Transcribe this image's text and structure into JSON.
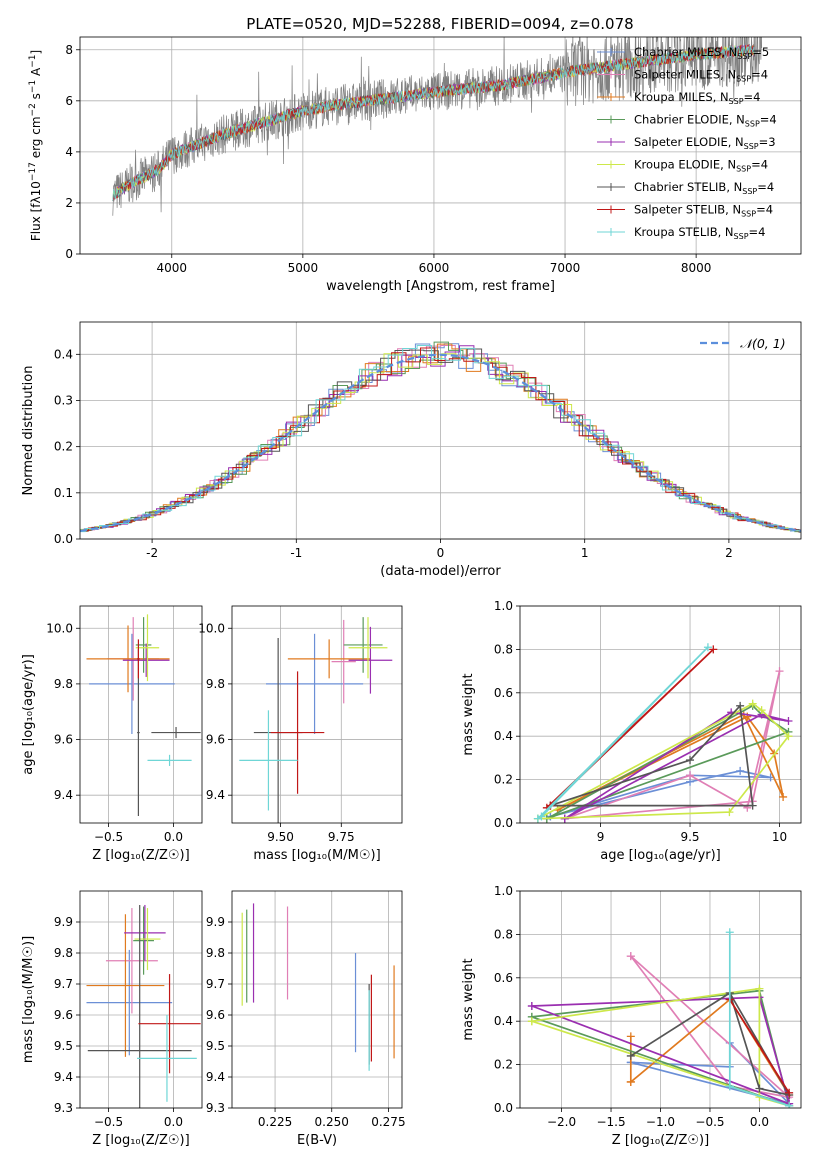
{
  "title": "PLATE=0520, MJD=52288, FIBERID=0094, z=0.078",
  "colors": {
    "Chabrier MILES": "#6b8fd6",
    "Salpeter MILES": "#e07fb5",
    "Kroupa MILES": "#e07a1f",
    "Chabrier ELODIE": "#5a9a5a",
    "Salpeter ELODIE": "#9a2fb0",
    "Kroupa ELODIE": "#cde84a",
    "Chabrier STELIB": "#555555",
    "Salpeter STELIB": "#c01818",
    "Kroupa STELIB": "#6fd6d6"
  },
  "legend_spectrum": [
    {
      "name": "Chabrier MILES",
      "n": "5"
    },
    {
      "name": "Salpeter MILES",
      "n": "4"
    },
    {
      "name": "Kroupa MILES",
      "n": "4"
    },
    {
      "name": "Chabrier ELODIE",
      "n": "4"
    },
    {
      "name": "Salpeter ELODIE",
      "n": "3"
    },
    {
      "name": "Kroupa ELODIE",
      "n": "4"
    },
    {
      "name": "Chabrier STELIB",
      "n": "4"
    },
    {
      "name": "Salpeter STELIB",
      "n": "4"
    },
    {
      "name": "Kroupa STELIB",
      "n": "4"
    }
  ],
  "chart_data": [
    {
      "type": "line",
      "name": "spectrum",
      "xlabel": "wavelength [Angstrom, rest frame]",
      "ylabel_parts": [
        "Flux [f",
        "λ",
        "10",
        "−17",
        " erg cm",
        "−2",
        " s",
        "−1",
        " A",
        "−1",
        "]"
      ],
      "xlim": [
        3300,
        8800
      ],
      "ylim": [
        0,
        8.5
      ],
      "xticks": [
        4000,
        5000,
        6000,
        7000,
        8000
      ],
      "yticks": [
        0,
        2,
        4,
        6,
        8
      ],
      "continuum": [
        [
          3550,
          2.3
        ],
        [
          3700,
          2.8
        ],
        [
          3900,
          3.3
        ],
        [
          4000,
          3.9
        ],
        [
          4200,
          4.3
        ],
        [
          4400,
          4.7
        ],
        [
          4600,
          5.0
        ],
        [
          4800,
          5.3
        ],
        [
          5000,
          5.6
        ],
        [
          5200,
          5.8
        ],
        [
          5500,
          6.0
        ],
        [
          5800,
          6.2
        ],
        [
          6100,
          6.4
        ],
        [
          6500,
          6.6
        ],
        [
          6800,
          6.9
        ],
        [
          7100,
          7.2
        ],
        [
          7400,
          7.4
        ],
        [
          8000,
          7.8
        ],
        [
          8400,
          8.0
        ],
        [
          8500,
          7.9
        ]
      ]
    },
    {
      "type": "histogram",
      "name": "residuals",
      "xlabel": "(data-model)/error",
      "ylabel": "Normed distribution",
      "xlim": [
        -2.5,
        2.5
      ],
      "ylim": [
        0,
        0.47
      ],
      "xticks": [
        -2,
        -1,
        0,
        1,
        2
      ],
      "yticks": [
        0.0,
        0.1,
        0.2,
        0.3,
        0.4
      ],
      "legend": "𝒩(0, 1)"
    },
    {
      "type": "scatter",
      "name": "age-vs-Z",
      "xlabel": "Z [log₁₀(Z/Z☉)]",
      "ylabel": "age  [log₁₀(age/yr)]",
      "xlim": [
        -0.72,
        0.22
      ],
      "ylim": [
        9.3,
        10.08
      ],
      "xticks": [
        -0.5,
        0.0
      ],
      "xtick_labels": [
        "−0.5",
        "0.0"
      ],
      "yticks": [
        9.4,
        9.6,
        9.8,
        10.0
      ],
      "points": [
        {
          "c": "Chabrier MILES",
          "x": -0.32,
          "y": 9.8,
          "xe": 0.33,
          "ye": 0.18
        },
        {
          "c": "Salpeter MILES",
          "x": -0.31,
          "y": 9.89,
          "xe": 0.2,
          "ye": 0.15
        },
        {
          "c": "Kroupa MILES",
          "x": -0.35,
          "y": 9.89,
          "xe": 0.32,
          "ye": 0.12
        },
        {
          "c": "Chabrier ELODIE",
          "x": -0.23,
          "y": 9.94,
          "xe": 0.06,
          "ye": 0.1
        },
        {
          "c": "Salpeter ELODIE",
          "x": -0.21,
          "y": 9.885,
          "xe": 0.18,
          "ye": 0.06
        },
        {
          "c": "Kroupa ELODIE",
          "x": -0.2,
          "y": 9.93,
          "xe": 0.09,
          "ye": 0.12
        },
        {
          "c": "Chabrier STELIB",
          "x": -0.27,
          "y": 9.625,
          "xe": 0.01,
          "ye": 0.3
        },
        {
          "c": "Chabrier STELIB",
          "x": 0.02,
          "y": 9.625,
          "xe": 0.19,
          "ye": 0.02
        },
        {
          "c": "Salpeter STELIB",
          "x": -0.27,
          "y": 9.89,
          "xe": 0.01,
          "ye": 0.07
        },
        {
          "c": "Kroupa STELIB",
          "x": -0.03,
          "y": 9.525,
          "xe": 0.17,
          "ye": 0.02
        }
      ]
    },
    {
      "type": "scatter",
      "name": "age-vs-mass",
      "xlabel": "mass [log₁₀(M/M☉)]",
      "xlim": [
        9.3,
        10.0
      ],
      "ylim": [
        9.3,
        10.08
      ],
      "xticks": [
        9.5,
        9.75
      ],
      "xtick_labels": [
        "9.50",
        "9.75"
      ],
      "yticks": [
        9.4,
        9.6,
        9.8,
        10.0
      ],
      "points": [
        {
          "c": "Chabrier MILES",
          "x": 9.64,
          "y": 9.8,
          "xe": 0.2,
          "ye": 0.18
        },
        {
          "c": "Salpeter MILES",
          "x": 9.76,
          "y": 9.88,
          "xe": 0.05,
          "ye": 0.15
        },
        {
          "c": "Kroupa MILES",
          "x": 9.7,
          "y": 9.89,
          "xe": 0.17,
          "ye": 0.07
        },
        {
          "c": "Chabrier ELODIE",
          "x": 9.84,
          "y": 9.94,
          "xe": 0.08,
          "ye": 0.1
        },
        {
          "c": "Salpeter ELODIE",
          "x": 9.87,
          "y": 9.885,
          "xe": 0.09,
          "ye": 0.12
        },
        {
          "c": "Kroupa ELODIE",
          "x": 9.86,
          "y": 9.93,
          "xe": 0.08,
          "ye": 0.11
        },
        {
          "c": "Chabrier STELIB",
          "x": 9.49,
          "y": 9.625,
          "xe": 0.1,
          "ye": 0.34
        },
        {
          "c": "Salpeter STELIB",
          "x": 9.57,
          "y": 9.625,
          "xe": 0.11,
          "ye": 0.22
        },
        {
          "c": "Kroupa STELIB",
          "x": 9.45,
          "y": 9.525,
          "xe": 0.12,
          "ye": 0.18
        }
      ]
    },
    {
      "type": "line",
      "name": "mass-weight-vs-age",
      "xlabel": "age  [log₁₀(age/yr)]",
      "ylabel": "mass weight",
      "xlim": [
        8.55,
        10.12
      ],
      "ylim": [
        0.0,
        1.0
      ],
      "xticks": [
        9.0,
        9.5,
        10.0
      ],
      "yticks": [
        0.0,
        0.2,
        0.4,
        0.6,
        0.8,
        1.0
      ],
      "series": [
        {
          "c": "Chabrier MILES",
          "points": [
            [
              8.72,
              0.03
            ],
            [
              9.5,
              0.19
            ],
            [
              9.78,
              0.24
            ],
            [
              9.95,
              0.21
            ],
            [
              9.5,
              0.22
            ],
            [
              8.72,
              0.03
            ]
          ]
        },
        {
          "c": "Salpeter MILES",
          "points": [
            [
              8.8,
              0.02
            ],
            [
              9.5,
              0.22
            ],
            [
              9.82,
              0.07
            ],
            [
              10.0,
              0.7
            ],
            [
              9.85,
              0.1
            ],
            [
              8.8,
              0.02
            ]
          ]
        },
        {
          "c": "Kroupa MILES",
          "points": [
            [
              8.76,
              0.06
            ],
            [
              9.82,
              0.49
            ],
            [
              9.97,
              0.32
            ],
            [
              10.02,
              0.12
            ],
            [
              9.8,
              0.5
            ],
            [
              8.76,
              0.06
            ]
          ]
        },
        {
          "c": "Chabrier ELODIE",
          "points": [
            [
              8.7,
              0.02
            ],
            [
              9.85,
              0.54
            ],
            [
              9.9,
              0.5
            ],
            [
              10.05,
              0.42
            ],
            [
              8.7,
              0.02
            ]
          ]
        },
        {
          "c": "Salpeter ELODIE",
          "points": [
            [
              8.8,
              0.02
            ],
            [
              9.73,
              0.51
            ],
            [
              10.05,
              0.47
            ],
            [
              9.9,
              0.5
            ],
            [
              8.8,
              0.02
            ]
          ]
        },
        {
          "c": "Kroupa ELODIE",
          "points": [
            [
              8.65,
              0.02
            ],
            [
              9.85,
              0.55
            ],
            [
              9.9,
              0.52
            ],
            [
              10.05,
              0.4
            ],
            [
              9.72,
              0.05
            ],
            [
              8.65,
              0.02
            ]
          ]
        },
        {
          "c": "Chabrier STELIB",
          "points": [
            [
              8.72,
              0.08
            ],
            [
              9.5,
              0.29
            ],
            [
              9.78,
              0.54
            ],
            [
              9.85,
              0.08
            ],
            [
              8.72,
              0.08
            ]
          ]
        },
        {
          "c": "Salpeter STELIB",
          "points": [
            [
              8.7,
              0.07
            ],
            [
              9.63,
              0.8
            ],
            [
              8.72,
              0.08
            ]
          ]
        },
        {
          "c": "Kroupa STELIB",
          "points": [
            [
              8.65,
              0.02
            ],
            [
              9.6,
              0.81
            ],
            [
              8.67,
              0.03
            ]
          ]
        }
      ]
    },
    {
      "type": "scatter",
      "name": "mass-vs-Z",
      "xlabel": "Z [log₁₀(Z/Z☉)]",
      "ylabel": "mass [log₁₀(M/M☉)]",
      "xlim": [
        -0.72,
        0.22
      ],
      "ylim": [
        9.3,
        10.0
      ],
      "xticks": [
        -0.5,
        0.0
      ],
      "xtick_labels": [
        "−0.5",
        "0.0"
      ],
      "yticks": [
        9.3,
        9.4,
        9.5,
        9.6,
        9.7,
        9.8,
        9.9
      ],
      "points": [
        {
          "c": "Chabrier MILES",
          "x": -0.34,
          "y": 9.64,
          "xe": 0.33,
          "ye": 0.17
        },
        {
          "c": "Salpeter MILES",
          "x": -0.32,
          "y": 9.775,
          "xe": 0.2,
          "ye": 0.17
        },
        {
          "c": "Kroupa MILES",
          "x": -0.37,
          "y": 9.695,
          "xe": 0.3,
          "ye": 0.23
        },
        {
          "c": "Chabrier ELODIE",
          "x": -0.23,
          "y": 9.84,
          "xe": 0.08,
          "ye": 0.11
        },
        {
          "c": "Salpeter ELODIE",
          "x": -0.22,
          "y": 9.865,
          "xe": 0.16,
          "ye": 0.09
        },
        {
          "c": "Kroupa ELODIE",
          "x": -0.2,
          "y": 9.845,
          "xe": 0.1,
          "ye": 0.1
        },
        {
          "c": "Chabrier STELIB",
          "x": -0.26,
          "y": 9.485,
          "xe": 0.4,
          "ye": 0.47
        },
        {
          "c": "Salpeter STELIB",
          "x": -0.03,
          "y": 9.572,
          "xe": 0.24,
          "ye": 0.16
        },
        {
          "c": "Kroupa STELIB",
          "x": -0.05,
          "y": 9.46,
          "xe": 0.23,
          "ye": 0.14
        }
      ]
    },
    {
      "type": "scatter",
      "name": "mass-vs-EBV",
      "xlabel": "E(B-V)",
      "xlim": [
        0.206,
        0.281
      ],
      "ylim": [
        9.3,
        10.0
      ],
      "xticks": [
        0.225,
        0.25,
        0.275
      ],
      "xtick_labels": [
        "0.225",
        "0.250",
        "0.275"
      ],
      "yticks": [
        9.3,
        9.4,
        9.5,
        9.6,
        9.7,
        9.8,
        9.9
      ],
      "points": [
        {
          "c": "Chabrier MILES",
          "x": 0.2605,
          "y": 9.64,
          "ye": 0.16
        },
        {
          "c": "Salpeter MILES",
          "x": 0.2305,
          "y": 9.8,
          "ye": 0.15
        },
        {
          "c": "Kroupa MILES",
          "x": 0.2775,
          "y": 9.61,
          "ye": 0.15
        },
        {
          "c": "Chabrier ELODIE",
          "x": 0.2125,
          "y": 9.79,
          "ye": 0.15
        },
        {
          "c": "Salpeter ELODIE",
          "x": 0.2155,
          "y": 9.8,
          "ye": 0.16
        },
        {
          "c": "Kroupa ELODIE",
          "x": 0.2105,
          "y": 9.78,
          "ye": 0.15
        },
        {
          "c": "Chabrier STELIB",
          "x": 0.2665,
          "y": 9.57,
          "ye": 0.13
        },
        {
          "c": "Salpeter STELIB",
          "x": 0.2675,
          "y": 9.59,
          "ye": 0.14
        },
        {
          "c": "Kroupa STELIB",
          "x": 0.2665,
          "y": 9.55,
          "ye": 0.13
        }
      ]
    },
    {
      "type": "line",
      "name": "mass-weight-vs-Z",
      "xlabel": "Z [log₁₀(Z/Z☉)]",
      "ylabel": "mass weight",
      "xlim": [
        -2.42,
        0.42
      ],
      "ylim": [
        0.0,
        1.0
      ],
      "xticks": [
        -2.0,
        -1.5,
        -1.0,
        -0.5,
        0.0
      ],
      "xtick_labels": [
        "−2.0",
        "−1.5",
        "−1.0",
        "−0.5",
        "0.0"
      ],
      "yticks": [
        0.0,
        0.2,
        0.4,
        0.6,
        0.8,
        1.0
      ],
      "series": [
        {
          "c": "Chabrier MILES",
          "points": [
            [
              -1.3,
              0.21
            ],
            [
              -0.3,
              0.19
            ],
            [
              -0.3,
              0.3
            ],
            [
              0.3,
              0.02
            ],
            [
              -1.3,
              0.21
            ]
          ]
        },
        {
          "c": "Salpeter MILES",
          "points": [
            [
              -1.3,
              0.7
            ],
            [
              0.3,
              0.05
            ],
            [
              -0.3,
              0.1
            ],
            [
              -1.3,
              0.7
            ]
          ]
        },
        {
          "c": "Kroupa MILES",
          "points": [
            [
              -1.3,
              0.12
            ],
            [
              -1.3,
              0.33
            ],
            [
              -1.3,
              0.12
            ],
            [
              -0.3,
              0.5
            ],
            [
              0.3,
              0.06
            ],
            [
              -0.3,
              0.5
            ]
          ]
        },
        {
          "c": "Chabrier ELODIE",
          "points": [
            [
              -2.3,
              0.42
            ],
            [
              0.0,
              0.54
            ],
            [
              0.3,
              0.01
            ],
            [
              -2.3,
              0.42
            ]
          ]
        },
        {
          "c": "Salpeter ELODIE",
          "points": [
            [
              -2.3,
              0.47
            ],
            [
              0.0,
              0.51
            ],
            [
              0.3,
              0.02
            ],
            [
              -2.3,
              0.47
            ]
          ]
        },
        {
          "c": "Kroupa ELODIE",
          "points": [
            [
              -2.3,
              0.4
            ],
            [
              0.0,
              0.55
            ],
            [
              0.0,
              0.05
            ],
            [
              0.3,
              0.01
            ],
            [
              -2.3,
              0.4
            ]
          ]
        },
        {
          "c": "Chabrier STELIB",
          "points": [
            [
              -1.3,
              0.24
            ],
            [
              -0.3,
              0.53
            ],
            [
              0.0,
              0.09
            ],
            [
              0.3,
              0.06
            ],
            [
              -0.3,
              0.53
            ]
          ]
        },
        {
          "c": "Salpeter STELIB",
          "points": [
            [
              -0.3,
              0.5
            ],
            [
              0.3,
              0.07
            ],
            [
              -0.3,
              0.5
            ]
          ]
        },
        {
          "c": "Kroupa STELIB",
          "points": [
            [
              -0.3,
              0.81
            ],
            [
              -0.3,
              0.1
            ],
            [
              0.3,
              0.01
            ],
            [
              -0.3,
              0.1
            ]
          ]
        }
      ]
    }
  ]
}
